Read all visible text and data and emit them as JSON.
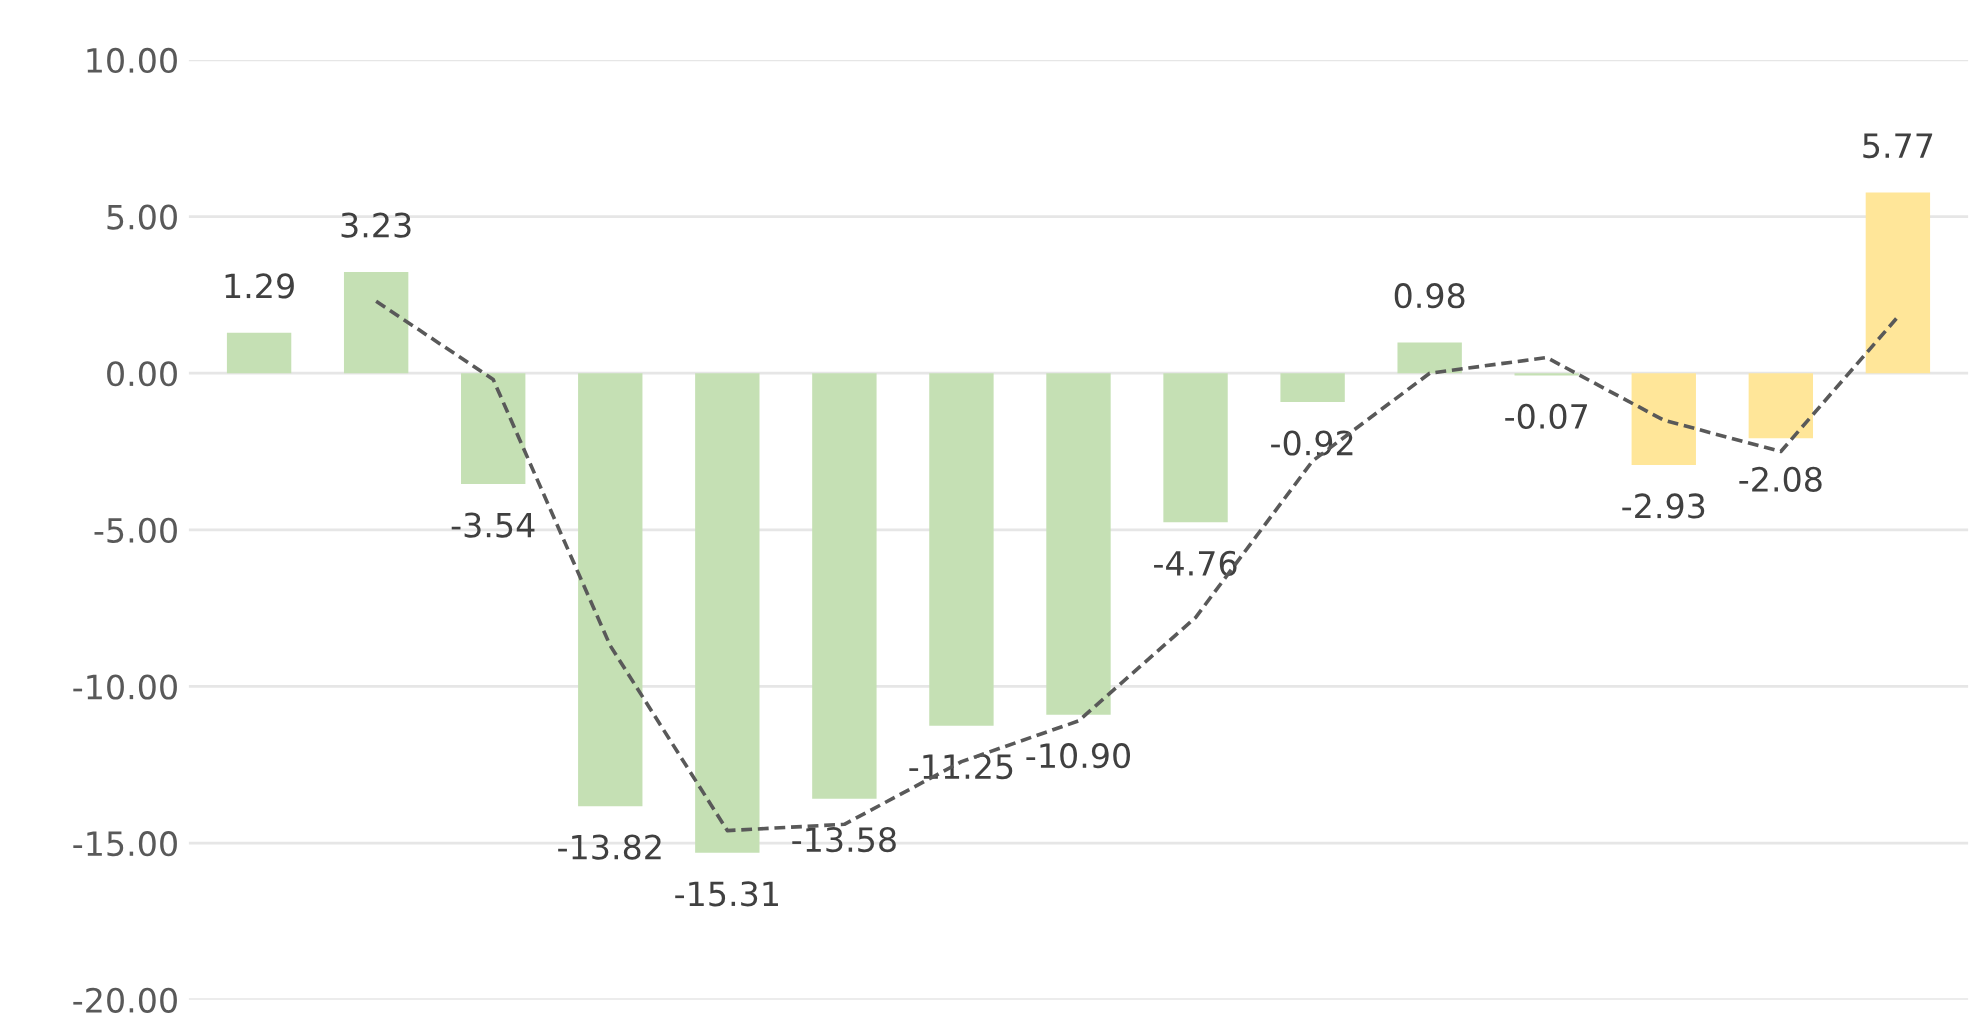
{
  "chart_data": {
    "type": "bar",
    "categories": [
      null,
      null,
      null,
      null,
      null,
      null,
      null,
      null,
      null,
      null,
      null,
      null,
      null,
      null,
      null
    ],
    "series": [
      {
        "colors": [
          "#c5e0b4",
          "#c5e0b4",
          "#c5e0b4",
          "#c5e0b4",
          "#c5e0b4",
          "#c5e0b4",
          "#c5e0b4",
          "#c5e0b4",
          "#c5e0b4",
          "#c5e0b4",
          "#c5e0b4",
          "#c5e0b4",
          "#ffe699",
          "#ffe699",
          "#ffe699"
        ],
        "values": [
          1.29,
          3.23,
          -3.54,
          -13.82,
          -15.31,
          -13.58,
          -11.25,
          -10.9,
          -4.76,
          -0.92,
          0.98,
          -0.07,
          -2.93,
          -2.08,
          5.77
        ],
        "value_labels": [
          "1.29",
          "3.23",
          "-3.54",
          "-13.82",
          "-15.31",
          "-13.58",
          "-11.25",
          "-10.90",
          "-4.76",
          "-0.92",
          "0.98",
          "-0.07",
          "-2.93",
          "-2.08",
          "5.77"
        ]
      },
      {
        "type": "line",
        "color": "#595959",
        "line_style": "dashed",
        "values": [
          null,
          2.3,
          -0.2,
          -8.7,
          -14.6,
          -14.4,
          -12.4,
          -11.1,
          -7.8,
          -2.8,
          0.0,
          0.5,
          -1.5,
          -2.5,
          1.8
        ]
      }
    ],
    "ylim": [
      -20,
      10
    ],
    "yticks": [
      {
        "value": -20,
        "label": "-20.00"
      },
      {
        "value": -15,
        "label": "-15.00"
      },
      {
        "value": -10,
        "label": "-10.00"
      },
      {
        "value": -5,
        "label": "-5.00"
      },
      {
        "value": 0,
        "label": "0.00"
      },
      {
        "value": 5,
        "label": "5.00"
      },
      {
        "value": 10,
        "label": "10.00"
      }
    ],
    "grid": "y",
    "tick_labels": "y",
    "legend": false
  }
}
